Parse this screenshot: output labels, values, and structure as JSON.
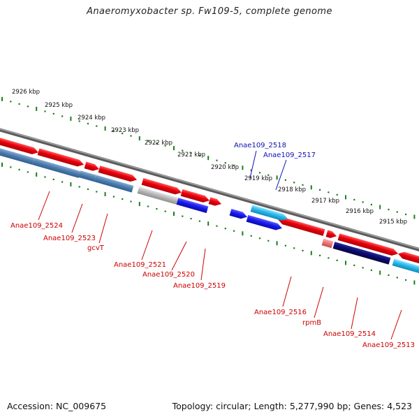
{
  "title": "Anaeromyxobacter sp. Fw109-5, complete genome",
  "footer": {
    "accession": "Accession: NC_009675",
    "summary": "Topology: circular; Length: 5,277,990 bp; Genes: 4,523"
  },
  "colors": {
    "forward_gene": "#e8000b",
    "forward_gene_pale": "#ee7777",
    "forward_cds": "#4f7fb0",
    "forward_cds_gray": "#b8b8b8",
    "reverse_gene_blue": "#1a1aee",
    "reverse_gene_cyan": "#28b8ec",
    "reverse_gene_navy": "#0a0a6e",
    "tick": "#1a7f1a",
    "backbone": "#7a7a7a",
    "label_red": "#cc0000",
    "label_blue": "#1010b0"
  },
  "scale_labels": [
    "2926 kbp",
    "2925 kbp",
    "2924 kbp",
    "2923 kbp",
    "2922 kbp",
    "2921 kbp",
    "2920 kbp",
    "2919 kbp",
    "2918 kbp",
    "2917 kbp",
    "2916 kbp",
    "2915 kbp"
  ],
  "genes_top": [
    {
      "label": "Anae109_2518",
      "color": "label_blue"
    },
    {
      "label": "Anae109_2517",
      "color": "label_blue"
    }
  ],
  "genes_bottom": [
    {
      "label": "Anae109_2524",
      "color": "label_red"
    },
    {
      "label": "Anae109_2523",
      "color": "label_red"
    },
    {
      "label": "gcvT",
      "color": "label_red"
    },
    {
      "label": "Anae109_2521",
      "color": "label_red"
    },
    {
      "label": "Anae109_2520",
      "color": "label_red"
    },
    {
      "label": "Anae109_2519",
      "color": "label_red"
    },
    {
      "label": "Anae109_2516",
      "color": "label_red"
    },
    {
      "label": "rpmB",
      "color": "label_red"
    },
    {
      "label": "Anae109_2514",
      "color": "label_red"
    },
    {
      "label": "Anae109_2513",
      "color": "label_red"
    }
  ]
}
